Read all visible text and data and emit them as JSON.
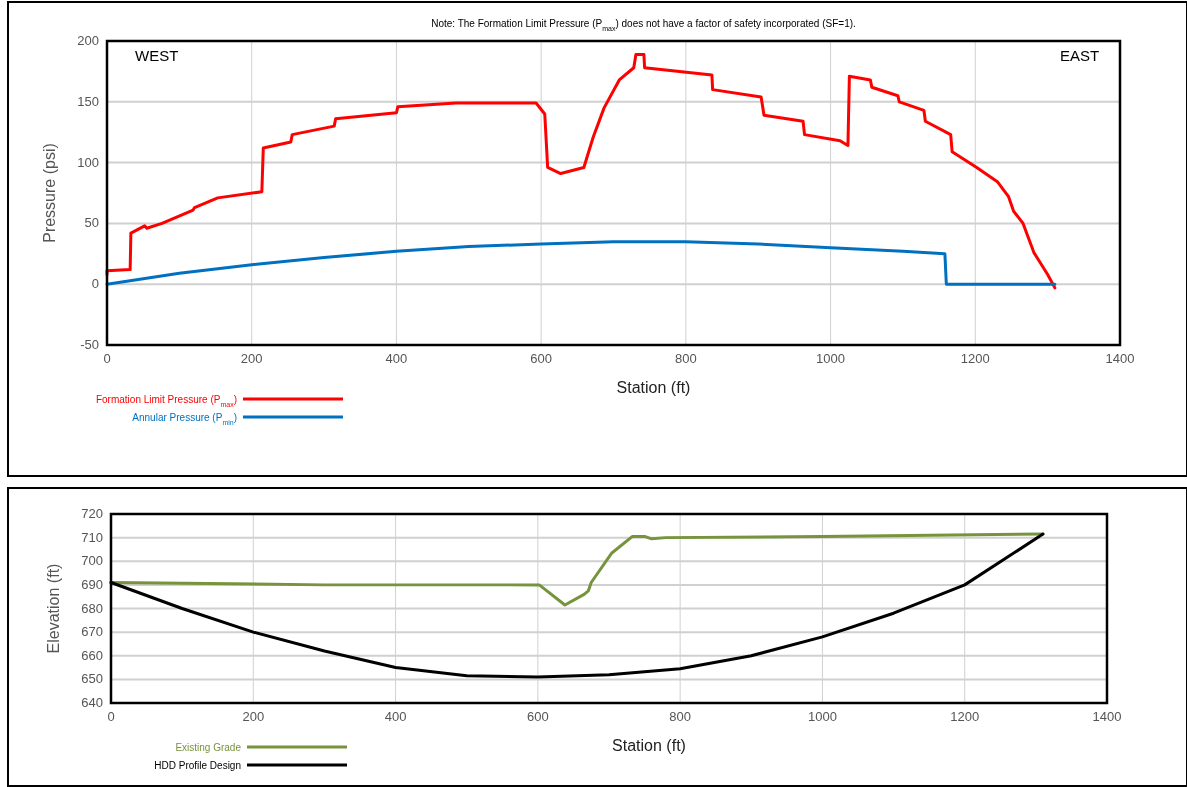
{
  "chart_data": [
    {
      "type": "line",
      "title": "Note: The Formation Limit Pressure (P$_{max}$) does not have a factor of safety incorporated (SF=1).",
      "annotations": [
        "WEST",
        "EAST"
      ],
      "xlabel": "Station (ft)",
      "ylabel": "Pressure (psi)",
      "xlim": [
        0,
        1400
      ],
      "xticks": [
        0,
        200,
        400,
        600,
        800,
        1000,
        1200,
        1400
      ],
      "ylim": [
        -50,
        200
      ],
      "yticks": [
        -50,
        0,
        50,
        100,
        150,
        200
      ],
      "grid": true,
      "legend": "bottom left",
      "line_style": "solid",
      "series": [
        {
          "name": "Formation Limit Pressure (P$_{max}$)",
          "color": "#ff0000",
          "x": [
            0,
            0,
            32,
            33,
            52,
            55,
            76,
            119,
            121,
            153,
            214,
            216,
            254,
            256,
            314,
            316,
            400,
            402,
            482,
            593,
            605,
            609,
            627,
            659,
            672,
            687,
            708,
            728,
            731,
            742,
            743,
            836,
            837,
            904,
            908,
            962,
            964,
            1013,
            1024,
            1026,
            1055,
            1057,
            1093,
            1095,
            1129,
            1131,
            1166,
            1168,
            1202,
            1231,
            1246,
            1253,
            1266,
            1281,
            1300,
            1310
          ],
          "values": [
            8,
            11,
            12,
            42,
            48,
            46,
            50,
            61,
            63,
            71,
            76,
            112,
            117,
            123,
            130,
            136,
            141,
            146,
            149,
            149,
            140,
            96,
            91,
            96,
            121,
            145,
            168,
            178,
            189,
            189,
            178,
            172,
            160,
            154,
            139,
            134,
            123,
            118,
            114,
            171,
            168,
            162,
            155,
            150,
            143,
            134,
            123,
            109,
            96,
            84,
            72,
            60,
            50,
            26,
            8,
            -3
          ]
        },
        {
          "name": "Annular Pressure (P$_{min}$)",
          "color": "#0070c0",
          "x": [
            0,
            100,
            200,
            300,
            400,
            500,
            600,
            700,
            800,
            900,
            1000,
            1100,
            1158,
            1160,
            1310
          ],
          "values": [
            0,
            9,
            16,
            22,
            27,
            31,
            33,
            35,
            35,
            33,
            30,
            27,
            25,
            0,
            0
          ]
        }
      ]
    },
    {
      "type": "line",
      "xlabel": "Station (ft)",
      "ylabel": "Elevation (ft)",
      "xlim": [
        0,
        1400
      ],
      "xticks": [
        0,
        200,
        400,
        600,
        800,
        1000,
        1200,
        1400
      ],
      "ylim": [
        640,
        720
      ],
      "yticks": [
        640,
        650,
        660,
        670,
        680,
        690,
        700,
        710,
        720
      ],
      "grid": true,
      "legend": "bottom left",
      "line_style": "solid",
      "series": [
        {
          "name": "Existing Grade",
          "color": "#77933c",
          "x": [
            0,
            300,
            602,
            638,
            665,
            671,
            675,
            704,
            733,
            750,
            760,
            780,
            1000,
            1310
          ],
          "values": [
            691,
            690,
            690,
            681.5,
            686,
            687.5,
            691,
            703.5,
            710.5,
            710.5,
            709.5,
            710,
            710.5,
            711.5
          ]
        },
        {
          "name": "HDD Profile Design",
          "color": "#000000",
          "x": [
            0,
            100,
            200,
            300,
            400,
            500,
            600,
            700,
            800,
            900,
            1000,
            1100,
            1200,
            1310
          ],
          "values": [
            691,
            680,
            670,
            662,
            655,
            651.5,
            651,
            652,
            654.5,
            660,
            668,
            678,
            690,
            711.5
          ]
        }
      ]
    }
  ]
}
